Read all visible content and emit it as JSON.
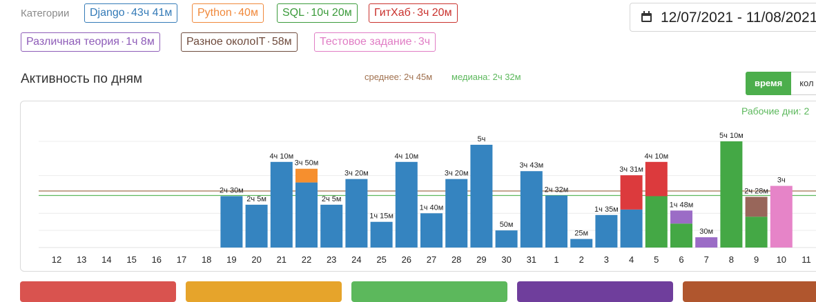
{
  "categories": {
    "label": "Категории",
    "tags": [
      {
        "name": "Django",
        "time": "43ч 41м",
        "color": "#337ab7"
      },
      {
        "name": "Python",
        "time": "40м",
        "color": "#f0883a"
      },
      {
        "name": "SQL",
        "time": "10ч 20м",
        "color": "#3a9a3a"
      },
      {
        "name": "ГитХаб",
        "time": "3ч 20м",
        "color": "#c9302c"
      },
      {
        "name": "Различная теория",
        "time": "1ч 8м",
        "color": "#8e5cb8"
      },
      {
        "name": "Разное околоIT",
        "time": "58м",
        "color": "#6e4a3c"
      },
      {
        "name": "Тестовое задание",
        "time": "3ч",
        "color": "#e07cc4"
      }
    ]
  },
  "date_range": "12/07/2021 - 11/08/2021",
  "activity": {
    "title": "Активность по дням",
    "mean_label": "среднее: 2ч 45м",
    "median_label": "медиана: 2ч 32м",
    "toggle": {
      "active": "время",
      "inactive": "кол"
    },
    "workdays_label": "Рабочие дни: 2"
  },
  "colors": {
    "django": "#3584c0",
    "python": "#f68f2e",
    "sql": "#44a845",
    "github": "#dc3a3d",
    "theory": "#9b6cc6",
    "misc_it": "#98665a",
    "test": "#e684c8",
    "mean": "#a0714f",
    "median": "#5cb85c"
  },
  "chart_data": {
    "type": "bar",
    "stacked": true,
    "categories": [
      "12",
      "13",
      "14",
      "15",
      "16",
      "17",
      "18",
      "19",
      "20",
      "21",
      "22",
      "23",
      "24",
      "25",
      "26",
      "27",
      "28",
      "29",
      "30",
      "31",
      "1",
      "2",
      "3",
      "4",
      "5",
      "6",
      "7",
      "8",
      "9",
      "10",
      "11"
    ],
    "series": [
      {
        "name": "Django",
        "color": "#3584c0",
        "values": [
          0,
          0,
          0,
          0,
          0,
          0,
          0,
          150,
          125,
          250,
          190,
          125,
          200,
          75,
          250,
          100,
          200,
          300,
          50,
          223,
          152,
          25,
          95,
          111,
          0,
          0,
          0,
          0,
          0,
          0,
          0
        ]
      },
      {
        "name": "Python",
        "color": "#f68f2e",
        "values": [
          0,
          0,
          0,
          0,
          0,
          0,
          0,
          0,
          0,
          0,
          40,
          0,
          0,
          0,
          0,
          0,
          0,
          0,
          0,
          0,
          0,
          0,
          0,
          0,
          0,
          0,
          0,
          0,
          0,
          0,
          0
        ]
      },
      {
        "name": "SQL",
        "color": "#44a845",
        "values": [
          0,
          0,
          0,
          0,
          0,
          0,
          0,
          0,
          0,
          0,
          0,
          0,
          0,
          0,
          0,
          0,
          0,
          0,
          0,
          0,
          0,
          0,
          0,
          0,
          150,
          70,
          0,
          310,
          90,
          0,
          0
        ]
      },
      {
        "name": "ГитХаб",
        "color": "#dc3a3d",
        "values": [
          0,
          0,
          0,
          0,
          0,
          0,
          0,
          0,
          0,
          0,
          0,
          0,
          0,
          0,
          0,
          0,
          0,
          0,
          0,
          0,
          0,
          0,
          0,
          100,
          100,
          0,
          0,
          0,
          0,
          0,
          0
        ]
      },
      {
        "name": "Различная теория",
        "color": "#9b6cc6",
        "values": [
          0,
          0,
          0,
          0,
          0,
          0,
          0,
          0,
          0,
          0,
          0,
          0,
          0,
          0,
          0,
          0,
          0,
          0,
          0,
          0,
          0,
          0,
          0,
          0,
          0,
          38,
          30,
          0,
          0,
          0,
          0
        ]
      },
      {
        "name": "Разное околоIT",
        "color": "#98665a",
        "values": [
          0,
          0,
          0,
          0,
          0,
          0,
          0,
          0,
          0,
          0,
          0,
          0,
          0,
          0,
          0,
          0,
          0,
          0,
          0,
          0,
          0,
          0,
          0,
          0,
          0,
          0,
          0,
          0,
          58,
          0,
          0
        ]
      },
      {
        "name": "Тестовое задание",
        "color": "#e684c8",
        "values": [
          0,
          0,
          0,
          0,
          0,
          0,
          0,
          0,
          0,
          0,
          0,
          0,
          0,
          0,
          0,
          0,
          0,
          0,
          0,
          0,
          0,
          0,
          0,
          0,
          0,
          0,
          0,
          0,
          0,
          180,
          0
        ]
      }
    ],
    "value_labels": [
      "",
      "",
      "",
      "",
      "",
      "",
      "",
      "2ч 30м",
      "2ч 5м",
      "4ч 10м",
      "3ч 50м",
      "2ч 5м",
      "3ч 20м",
      "1ч 15м",
      "4ч 10м",
      "1ч 40м",
      "3ч 20м",
      "5ч",
      "50м",
      "3ч 43м",
      "2ч 32м",
      "25м",
      "1ч 35м",
      "3ч 31м",
      "4ч 10м",
      "1ч 48м",
      "30м",
      "5ч 10м",
      "2ч 28м",
      "3ч",
      ""
    ],
    "unit": "minutes",
    "ylim": [
      0,
      310
    ],
    "mean": 165,
    "median": 152,
    "grid": true
  }
}
